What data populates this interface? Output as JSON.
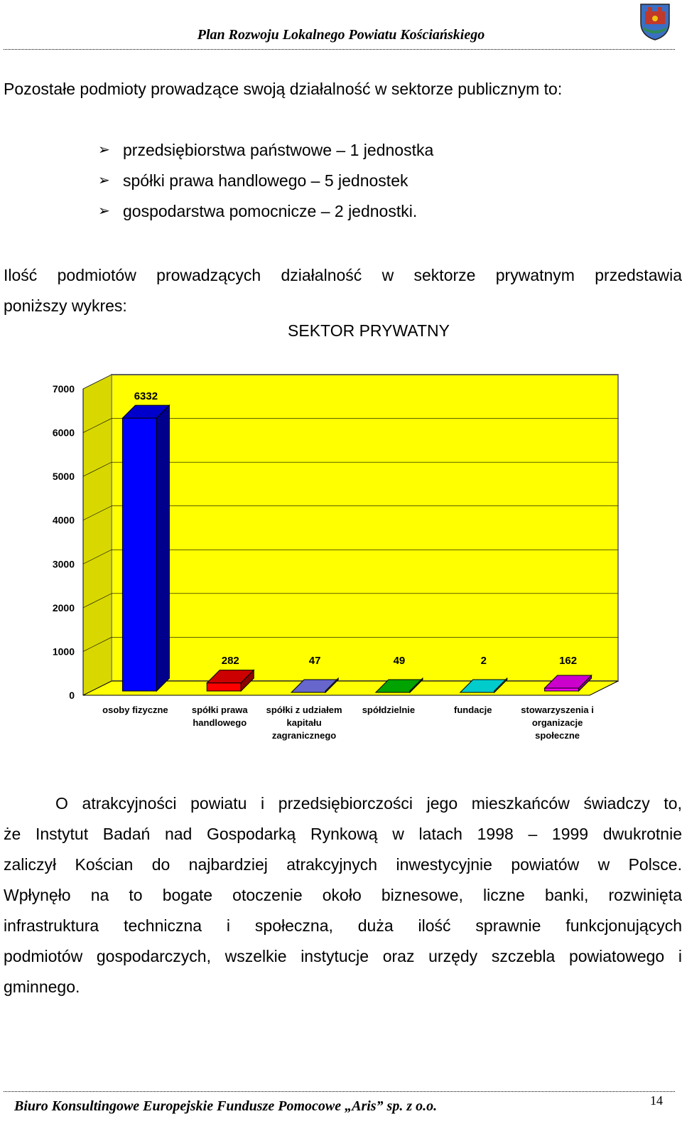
{
  "header": {
    "title": "Plan Rozwoju Lokalnego Powiatu Kościańskiego"
  },
  "intro": "Pozostałe podmioty prowadzące swoją działalność w sektorze publicznym to:",
  "bullets": [
    "przedsiębiorstwa państwowe – 1 jednostka",
    "spółki prawa handlowego – 5 jednostek",
    "gospodarstwa pomocnicze – 2 jednostki."
  ],
  "para1": {
    "line1": "Ilość podmiotów prowadzących działalność w sektorze prywatnym przedstawia",
    "line2": "poniższy wykres:"
  },
  "chart_data": {
    "type": "bar",
    "title": "SEKTOR PRYWATNY",
    "categories": [
      "osoby fizyczne",
      "spółki prawa handlowego",
      "spółki z udziałem kapitału zagranicznego",
      "spółdzielnie",
      "fundacje",
      "stowarzyszenia i organizacje społeczne"
    ],
    "category_lines": [
      [
        "osoby fizyczne"
      ],
      [
        "spółki prawa",
        "handlowego"
      ],
      [
        "spółki z udziałem",
        "kapitału",
        "zagranicznego"
      ],
      [
        "spółdzielnie"
      ],
      [
        "fundacje"
      ],
      [
        "stowarzyszenia i",
        "organizacje",
        "społeczne"
      ]
    ],
    "values": [
      6332,
      282,
      47,
      49,
      2,
      162
    ],
    "data_labels": [
      "6332",
      "282",
      "47",
      "49",
      "2",
      "162"
    ],
    "colors": [
      "#0000ff",
      "#ff0000",
      "#8080ff",
      "#00cc00",
      "#00ffff",
      "#ff00ff"
    ],
    "ylim": [
      0,
      7000
    ],
    "yticks": [
      "0",
      "1000",
      "2000",
      "3000",
      "4000",
      "5000",
      "6000",
      "7000"
    ],
    "background": "#ffff00",
    "grid": true,
    "style": "3d"
  },
  "para2": [
    "O atrakcyjności powiatu i przedsiębiorczości jego mieszkańców świadczy to,",
    "że Instytut Badań nad Gospodarką Rynkową w latach 1998 – 1999 dwukrotnie",
    "zaliczył Kościan do najbardziej atrakcyjnych inwestycyjnie powiatów w Polsce.",
    "Wpłynęło na to bogate otoczenie około biznesowe, liczne banki, rozwinięta",
    "infrastruktura techniczna i społeczna, duża ilość sprawnie funkcjonujących",
    "podmiotów gospodarczych, wszelkie instytucje oraz urzędy szczebla powiatowego i",
    "gminnego."
  ],
  "footer": {
    "text": "Biuro Konsultingowe Europejskie Fundusze Pomocowe „Aris” sp. z o.o.",
    "page": "14"
  }
}
